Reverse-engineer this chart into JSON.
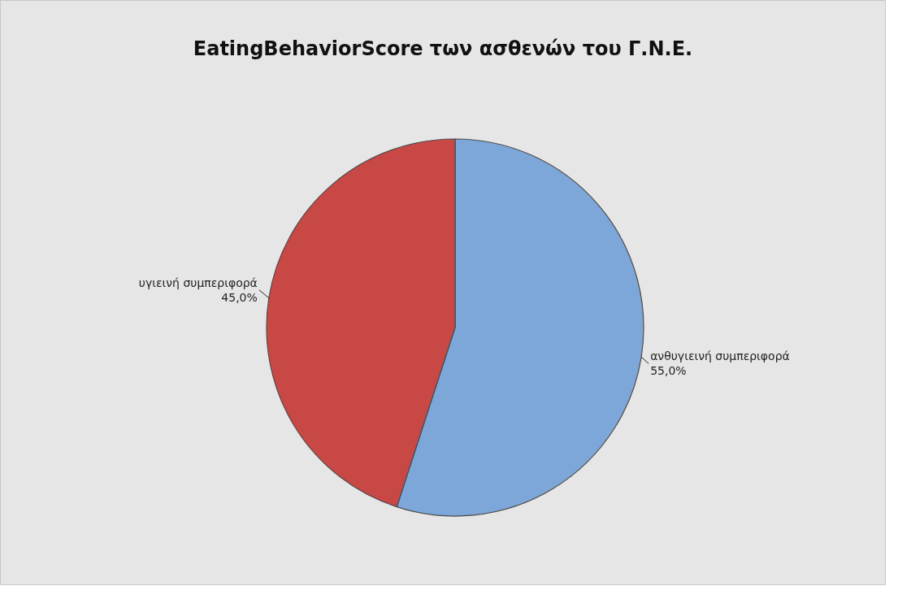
{
  "chart_data": {
    "type": "pie",
    "title": "EatingBehaviorScore των ασθενών του Γ.Ν.Ε.",
    "categories": [
      "ανθυγιεινή συμπεριφορά",
      "υγιεινή συμπεριφορά"
    ],
    "values": [
      55,
      45
    ],
    "colors": [
      "#7da7d9",
      "#c84846"
    ],
    "value_labels": [
      "55,0%",
      "45,0%"
    ]
  }
}
